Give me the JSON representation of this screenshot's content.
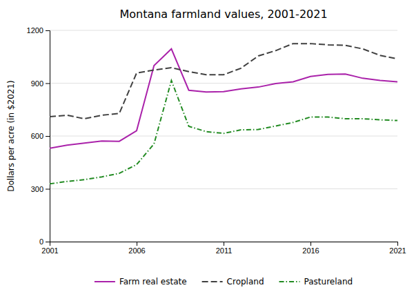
{
  "chart_data": {
    "type": "line",
    "title": "Montana farmland values, 2001-2021",
    "ylabel": "Dollars per acre (in $2021)",
    "x": [
      2001,
      2002,
      2003,
      2004,
      2005,
      2006,
      2007,
      2008,
      2009,
      2010,
      2011,
      2012,
      2013,
      2014,
      2015,
      2016,
      2017,
      2018,
      2019,
      2020,
      2021
    ],
    "series": [
      {
        "name": "Farm real estate",
        "color": "#AA22AA",
        "line_style": "solid",
        "values": [
          530,
          548,
          560,
          572,
          570,
          630,
          1000,
          1095,
          860,
          850,
          852,
          868,
          878,
          898,
          908,
          938,
          950,
          952,
          928,
          916,
          908
        ]
      },
      {
        "name": "Cropland",
        "color": "#404040",
        "line_style": "dashed",
        "values": [
          710,
          718,
          698,
          718,
          728,
          958,
          975,
          988,
          966,
          948,
          948,
          985,
          1055,
          1085,
          1125,
          1125,
          1118,
          1115,
          1095,
          1058,
          1038
        ]
      },
      {
        "name": "Pastureland",
        "color": "#228B22",
        "line_style": "dashdot",
        "values": [
          328,
          342,
          352,
          368,
          388,
          438,
          555,
          915,
          655,
          625,
          615,
          635,
          637,
          657,
          677,
          708,
          708,
          698,
          698,
          692,
          688
        ]
      }
    ],
    "xlim": [
      2001,
      2021
    ],
    "xticks": [
      2001,
      2006,
      2011,
      2016,
      2021
    ],
    "ylim": [
      0,
      1200
    ],
    "yticks": [
      0,
      300,
      600,
      900,
      1200
    ],
    "grid": true,
    "legend": "bottom"
  }
}
